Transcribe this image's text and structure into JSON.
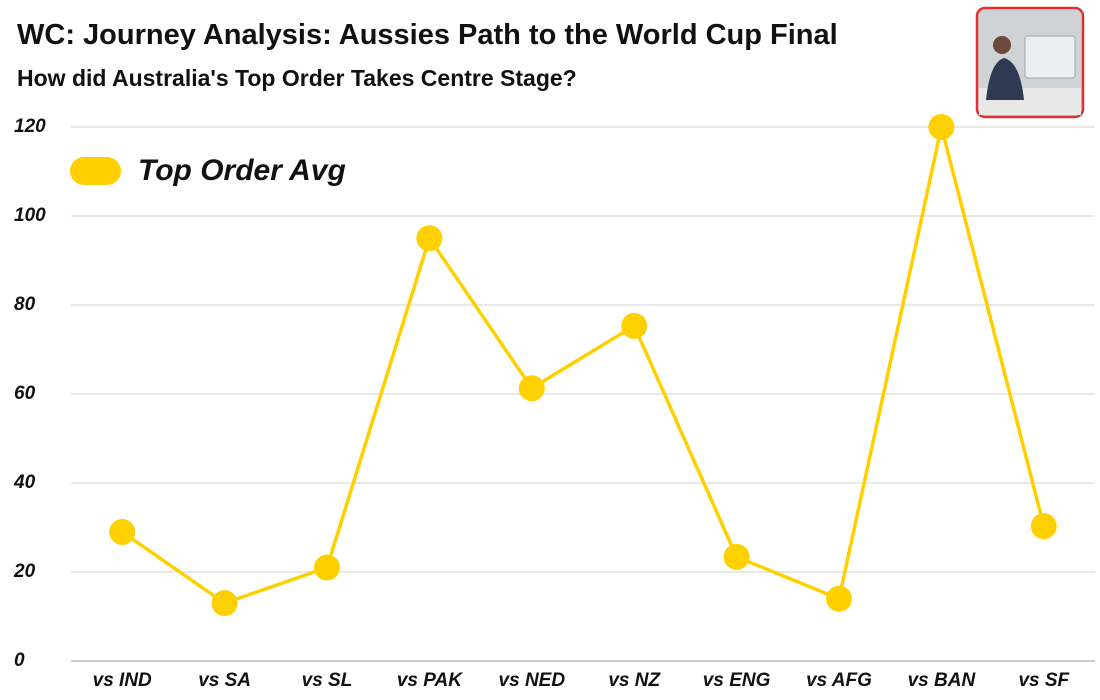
{
  "chart_data": {
    "type": "line",
    "title": "WC: Journey Analysis: Aussies Path to the World Cup Final",
    "subtitle": "How did Australia's Top Order Takes Centre Stage?",
    "categories": [
      "vs IND",
      "vs SA",
      "vs SL",
      "vs PAK",
      "vs NED",
      "vs NZ",
      "vs ENG",
      "vs AFG",
      "vs BAN",
      "vs SF"
    ],
    "series": [
      {
        "name": "Top Order Avg",
        "color": "#ffd000",
        "values": [
          29,
          13,
          21,
          95,
          61.3,
          75.3,
          23.4,
          14,
          120,
          30.3
        ]
      }
    ],
    "ylim": [
      0,
      120
    ],
    "yticks": [
      0,
      20,
      40,
      60,
      80,
      100,
      120
    ],
    "grid": true,
    "legend": "top-left"
  }
}
